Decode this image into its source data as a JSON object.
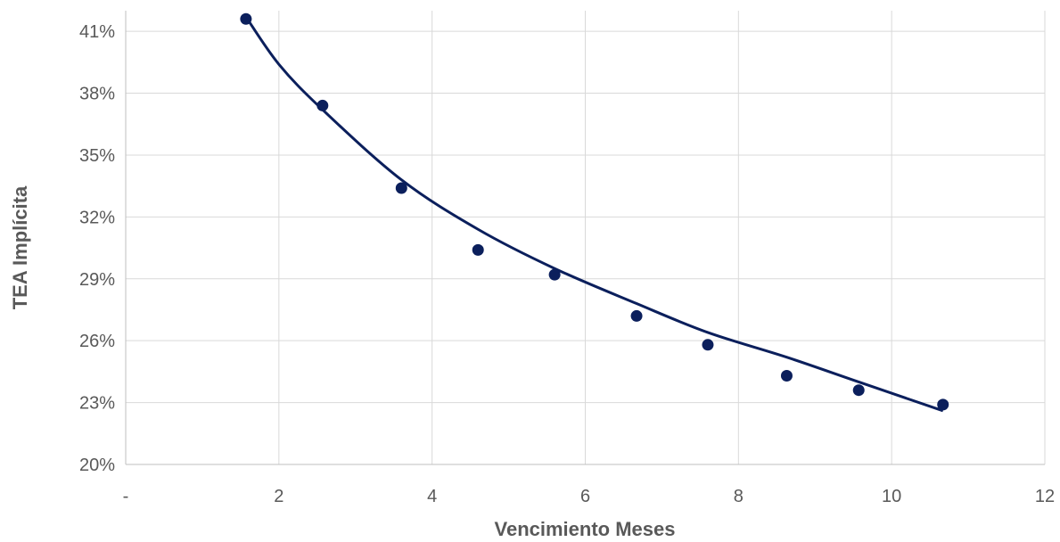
{
  "chart_data": {
    "type": "scatter",
    "title": "",
    "xlabel": "Vencimiento Meses",
    "ylabel": "TEA Implícita",
    "xlim": [
      0,
      12
    ],
    "ylim": [
      0.2,
      0.42
    ],
    "x_ticks": [
      {
        "value": 0,
        "label": "-"
      },
      {
        "value": 2,
        "label": "2"
      },
      {
        "value": 4,
        "label": "4"
      },
      {
        "value": 6,
        "label": "6"
      },
      {
        "value": 8,
        "label": "8"
      },
      {
        "value": 10,
        "label": "10"
      },
      {
        "value": 12,
        "label": "12"
      }
    ],
    "y_ticks": [
      {
        "value": 0.2,
        "label": "20%"
      },
      {
        "value": 0.23,
        "label": "23%"
      },
      {
        "value": 0.26,
        "label": "26%"
      },
      {
        "value": 0.29,
        "label": "29%"
      },
      {
        "value": 0.32,
        "label": "32%"
      },
      {
        "value": 0.35,
        "label": "35%"
      },
      {
        "value": 0.38,
        "label": "38%"
      },
      {
        "value": 0.41,
        "label": "41%"
      }
    ],
    "grid": true,
    "legend": "none",
    "point_color": "#0b1f5c",
    "trendline_color": "#0b1f5c",
    "series": [
      {
        "values": [
          {
            "x": 1.57,
            "y": 0.416
          },
          {
            "x": 2.57,
            "y": 0.374
          },
          {
            "x": 3.6,
            "y": 0.334
          },
          {
            "x": 4.6,
            "y": 0.304
          },
          {
            "x": 5.6,
            "y": 0.292
          },
          {
            "x": 6.67,
            "y": 0.272
          },
          {
            "x": 7.6,
            "y": 0.258
          },
          {
            "x": 8.63,
            "y": 0.243
          },
          {
            "x": 9.57,
            "y": 0.236
          },
          {
            "x": 10.67,
            "y": 0.229
          }
        ]
      }
    ],
    "trendline": {
      "type": "power",
      "x_start": 1.57,
      "x_end": 10.67,
      "points": [
        {
          "x": 1.57,
          "y": 0.417
        },
        {
          "x": 2.0,
          "y": 0.394
        },
        {
          "x": 2.57,
          "y": 0.372
        },
        {
          "x": 3.6,
          "y": 0.338
        },
        {
          "x": 4.6,
          "y": 0.314
        },
        {
          "x": 5.6,
          "y": 0.295
        },
        {
          "x": 6.67,
          "y": 0.278
        },
        {
          "x": 7.6,
          "y": 0.264
        },
        {
          "x": 8.63,
          "y": 0.252
        },
        {
          "x": 9.57,
          "y": 0.24
        },
        {
          "x": 10.67,
          "y": 0.226
        }
      ]
    }
  }
}
